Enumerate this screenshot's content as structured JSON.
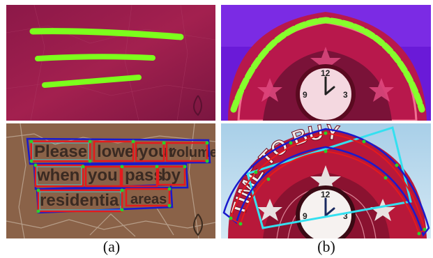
{
  "figure": {
    "captions": [
      "(a)",
      "(b)"
    ],
    "sign_a_words": [
      [
        "Please",
        "lower",
        "your",
        "volume"
      ],
      [
        "when",
        "you",
        "pass",
        "by"
      ],
      [
        "residential",
        "areas"
      ]
    ],
    "sign_b_text": "TIME TO BUY",
    "clock_numerals": [
      "12",
      "9",
      "3"
    ],
    "colors": {
      "heatmap_bg": "#9a1d4c",
      "heatmap_line": "#7cff1c",
      "box_red": "#e41a1c",
      "box_blue": "#1a1acc",
      "box_cyan": "#34e0f0",
      "point_green": "#2ad12a"
    }
  }
}
